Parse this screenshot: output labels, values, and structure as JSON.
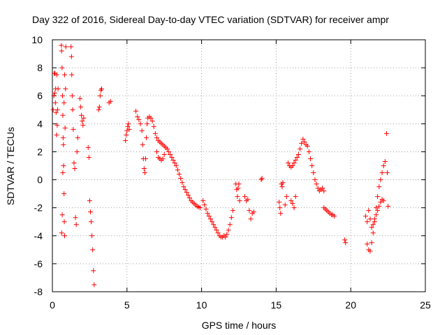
{
  "chart_data": {
    "type": "scatter",
    "title": "Day 322 of 2016, Sidereal Day-to-day VTEC variation (SDTVAR) for receiver ampr",
    "xlabel": "GPS time / hours",
    "ylabel": "SDTVAR / TECUs",
    "xlim": [
      0,
      25
    ],
    "ylim": [
      -8,
      10
    ],
    "xticks": [
      0,
      5,
      10,
      15,
      20,
      25
    ],
    "yticks": [
      -8,
      -6,
      -4,
      -2,
      0,
      2,
      4,
      6,
      8,
      10
    ],
    "grid": true,
    "marker": "plus",
    "color": "#ff0000",
    "series": [
      {
        "name": "SDTVAR",
        "segments": [
          {
            "x": [
              0.05,
              0.1,
              0.12,
              0.15,
              0.18,
              0.2,
              0.22,
              0.25,
              0.28,
              0.3,
              0.32,
              0.35,
              0.38
            ],
            "y": [
              5.0,
              6.0,
              7.6,
              6.2,
              7.6,
              5.5,
              6.5,
              4.8,
              3.2,
              7.5,
              3.9,
              5.0,
              6.5
            ]
          },
          {
            "x": [
              0.6,
              0.62,
              0.65,
              0.68,
              0.7,
              0.72,
              0.75,
              0.78,
              0.8,
              0.82,
              0.85,
              0.88,
              0.9,
              0.62,
              0.66,
              0.7,
              0.74,
              0.78,
              0.82
            ],
            "y": [
              9.6,
              9.2,
              8.0,
              6.0,
              4.6,
              3.0,
              1.0,
              -1.0,
              -3.0,
              -4.0,
              3.7,
              6.5,
              9.5,
              -3.8,
              -2.5,
              0.5,
              2.5,
              5.5,
              7.5
            ]
          },
          {
            "x": [
              1.25,
              1.28,
              1.3,
              1.33,
              1.36,
              1.4,
              1.45,
              1.5,
              1.55,
              1.6,
              1.65,
              1.7
            ],
            "y": [
              9.5,
              8.8,
              7.5,
              6.0,
              5.0,
              3.6,
              1.2,
              0.8,
              -2.7,
              -3.2,
              2.0,
              3.0
            ]
          },
          {
            "x": [
              1.85,
              1.9,
              1.95,
              2.0,
              2.05,
              2.1
            ],
            "y": [
              5.8,
              5.2,
              4.6,
              4.2,
              3.9,
              4.4
            ]
          },
          {
            "x": [
              2.4,
              2.45,
              2.5,
              2.55,
              2.6,
              2.65,
              2.7,
              2.75,
              2.8
            ],
            "y": [
              2.3,
              1.6,
              -1.5,
              -2.3,
              -3.0,
              -4.0,
              -5.0,
              -6.5,
              -7.5
            ]
          },
          {
            "x": [
              3.1,
              3.15,
              3.2,
              3.25,
              3.3
            ],
            "y": [
              5.0,
              5.2,
              6.0,
              6.4,
              6.5
            ]
          },
          {
            "x": [
              3.8,
              3.9
            ],
            "y": [
              5.5,
              5.6
            ]
          },
          {
            "x": [
              4.9,
              4.95,
              5.0,
              5.05,
              5.1,
              5.15
            ],
            "y": [
              2.8,
              3.2,
              3.5,
              3.8,
              4.0,
              3.6
            ]
          },
          {
            "x": [
              5.6,
              5.7,
              5.8,
              5.9,
              6.0,
              6.05,
              6.1,
              6.15,
              6.2,
              6.25,
              6.3,
              6.35,
              6.4
            ],
            "y": [
              4.9,
              4.5,
              4.3,
              4.0,
              3.5,
              2.5,
              1.5,
              0.8,
              0.5,
              1.5,
              3.0,
              4.0,
              4.4
            ]
          },
          {
            "x": [
              6.5,
              6.6,
              6.7,
              6.8,
              6.9,
              7.0,
              7.1,
              7.2,
              7.3,
              7.4,
              7.5,
              7.6,
              7.7,
              7.8,
              7.9,
              8.0,
              8.1,
              8.2,
              8.3,
              8.4,
              8.5,
              8.6,
              8.7,
              8.8,
              8.9,
              9.0,
              9.1,
              9.2,
              9.3,
              9.4,
              9.5,
              9.6,
              9.7,
              9.8,
              9.9
            ],
            "y": [
              4.5,
              4.4,
              4.2,
              3.8,
              3.3,
              3.0,
              2.8,
              2.7,
              2.6,
              2.5,
              2.4,
              2.3,
              2.2,
              2.0,
              1.8,
              1.6,
              1.4,
              1.2,
              1.0,
              0.7,
              0.4,
              0.1,
              -0.2,
              -0.5,
              -0.7,
              -0.9,
              -1.1,
              -1.3,
              -1.5,
              -1.6,
              -1.7,
              -1.8,
              -1.9,
              -1.95,
              -2.0
            ]
          },
          {
            "x": [
              7.0,
              7.1,
              7.2,
              7.3,
              7.4,
              7.5
            ],
            "y": [
              2.0,
              1.6,
              1.5,
              1.4,
              1.5,
              1.8
            ]
          },
          {
            "x": [
              10.1,
              10.2,
              10.3,
              10.4,
              10.5,
              10.6,
              10.7,
              10.8,
              10.9,
              11.0,
              11.1,
              11.2,
              11.3,
              11.4,
              11.5,
              11.6,
              11.7,
              11.8,
              11.9,
              12.0,
              12.1
            ],
            "y": [
              -1.5,
              -1.8,
              -2.1,
              -2.4,
              -2.6,
              -2.8,
              -3.0,
              -3.2,
              -3.4,
              -3.6,
              -3.8,
              -4.0,
              -4.1,
              -4.1,
              -4.0,
              -4.1,
              -3.9,
              -3.6,
              -3.2,
              -2.7,
              -2.2
            ]
          },
          {
            "x": [
              12.3,
              12.35,
              12.4,
              12.45,
              12.5,
              12.55
            ],
            "y": [
              -0.3,
              -0.7,
              -1.2,
              -0.6,
              -0.3,
              -1.5
            ]
          },
          {
            "x": [
              12.9,
              13.0,
              13.1,
              13.2,
              13.3,
              13.4,
              13.5
            ],
            "y": [
              -1.2,
              -1.5,
              -1.4,
              -2.2,
              -2.8,
              -2.4,
              -2.3
            ]
          },
          {
            "x": [
              14.0,
              14.05
            ],
            "y": [
              0.0,
              0.1
            ]
          },
          {
            "x": [
              15.2,
              15.25,
              15.3,
              15.35,
              15.4,
              15.45
            ],
            "y": [
              -1.6,
              -2.0,
              -2.4,
              -0.3,
              -0.5,
              -0.2
            ]
          },
          {
            "x": [
              15.6,
              15.7,
              15.8,
              15.9,
              16.0,
              16.1,
              16.2,
              16.3,
              16.4,
              16.5,
              16.6,
              16.7,
              16.8,
              16.9,
              17.0,
              17.1,
              17.2,
              17.3,
              17.4,
              17.5,
              17.6,
              17.7,
              17.8,
              17.9,
              18.0,
              18.1,
              18.2
            ],
            "y": [
              -1.8,
              -1.2,
              1.2,
              1.0,
              0.9,
              1.0,
              1.2,
              1.4,
              1.6,
              1.8,
              2.2,
              2.6,
              2.9,
              2.7,
              2.5,
              2.4,
              2.0,
              1.5,
              1.0,
              0.5,
              0.0,
              -0.3,
              -0.6,
              -0.8,
              -0.7,
              -0.6,
              -0.8
            ]
          },
          {
            "x": [
              16.0,
              16.1,
              16.2,
              16.3
            ],
            "y": [
              -1.5,
              -1.7,
              -2.0,
              -1.2
            ]
          },
          {
            "x": [
              18.2,
              18.3,
              18.4,
              18.5,
              18.6,
              18.7,
              18.8,
              18.9
            ],
            "y": [
              -2.0,
              -2.1,
              -2.2,
              -2.3,
              -2.4,
              -2.5,
              -2.5,
              -2.6
            ]
          },
          {
            "x": [
              19.6,
              19.65
            ],
            "y": [
              -4.3,
              -4.5
            ]
          },
          {
            "x": [
              21.1,
              21.2,
              21.3,
              21.4,
              21.5,
              21.6,
              21.7,
              21.8,
              21.9,
              22.0,
              22.1,
              22.2,
              22.3
            ],
            "y": [
              -4.6,
              -5.0,
              -5.1,
              -4.5,
              -3.8,
              -3.0,
              -2.0,
              -1.2,
              -0.5,
              0.0,
              0.5,
              1.0,
              1.3
            ]
          },
          {
            "x": [
              21.0,
              21.1,
              21.2,
              21.3,
              21.4,
              21.5,
              21.6,
              21.7,
              21.8,
              21.9,
              22.0,
              22.1,
              22.2
            ],
            "y": [
              -2.6,
              -3.0,
              -2.2,
              -2.8,
              -3.4,
              -3.2,
              -2.8,
              -2.5,
              -2.2,
              -1.9,
              -1.6,
              -1.4,
              -1.5
            ]
          },
          {
            "x": [
              22.4,
              22.45,
              22.5
            ],
            "y": [
              3.3,
              0.5,
              -1.9
            ]
          }
        ]
      }
    ]
  }
}
